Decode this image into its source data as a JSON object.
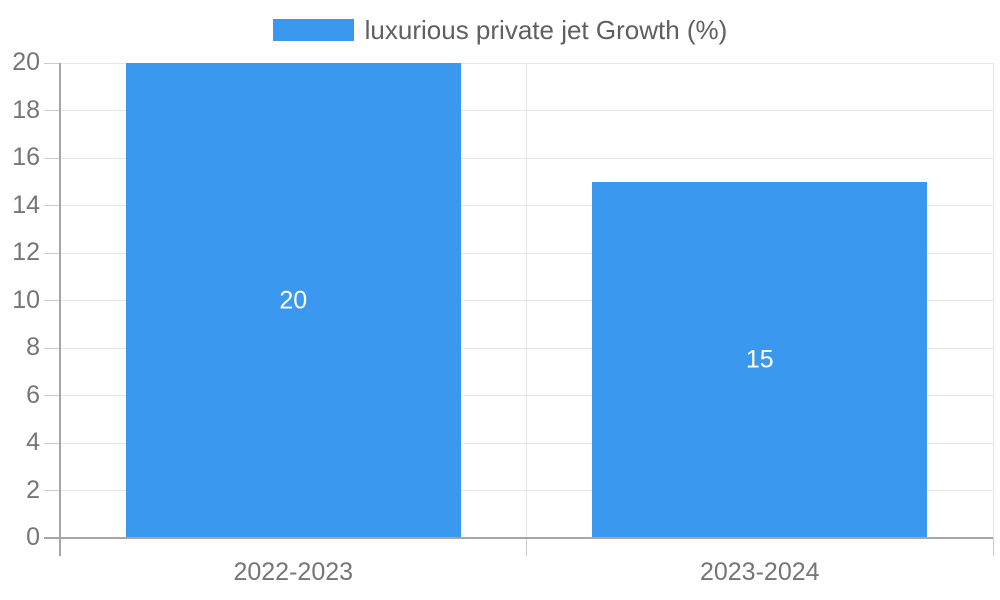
{
  "legend": {
    "label": "luxurious private jet Growth (%)",
    "swatch_color": "#3a99ee"
  },
  "chart_data": {
    "type": "bar",
    "title": "",
    "categories": [
      "2022-2023",
      "2023-2024"
    ],
    "series": [
      {
        "name": "luxurious private jet Growth (%)",
        "values": [
          20,
          15
        ]
      }
    ],
    "value_labels": [
      "20",
      "15"
    ],
    "xlabel": "",
    "ylabel": "",
    "ylim": [
      0,
      20
    ],
    "yticks": [
      0,
      2,
      4,
      6,
      8,
      10,
      12,
      14,
      16,
      18,
      20
    ],
    "grid": true,
    "legend_position": "top-center",
    "colors": {
      "bar": "#3a99ee",
      "grid": "#e6e6e6",
      "axis": "#a6a6a6",
      "tick": "#cccccc",
      "axis_text": "#757575",
      "legend_text": "#5f5f5f",
      "value_label": "#ffffff",
      "background": "#ffffff"
    }
  }
}
